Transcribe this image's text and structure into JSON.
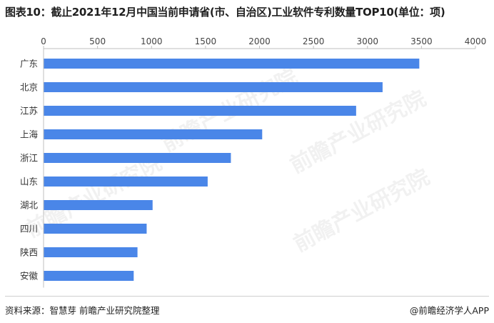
{
  "title": "图表10：截止2021年12月中国当前申请省(市、自治区)工业软件专利数量TOP10(单位：项)",
  "source": "资料来源：智慧芽 前瞻产业研究院整理",
  "credit": "@前瞻经济学人APP",
  "watermark": "前瞻产业研究院",
  "colors": {
    "bar": "#4a86e8",
    "axis": "#bfbfbf"
  },
  "chart_data": {
    "type": "bar",
    "orientation": "horizontal",
    "categories": [
      "广东",
      "北京",
      "江苏",
      "上海",
      "浙江",
      "山东",
      "湖北",
      "四川",
      "陕西",
      "安徽"
    ],
    "values": [
      3480,
      3140,
      2895,
      2025,
      1735,
      1520,
      1010,
      955,
      870,
      835
    ],
    "xticks": [
      0,
      500,
      1000,
      1500,
      2000,
      2500,
      3000,
      3500,
      4000
    ],
    "xlim": [
      0,
      4000
    ],
    "title": "图表10：截止2021年12月中国当前申请省(市、自治区)工业软件专利数量TOP10(单位：项)",
    "xlabel": "",
    "ylabel": "",
    "grid": false,
    "axis_position": "top"
  }
}
